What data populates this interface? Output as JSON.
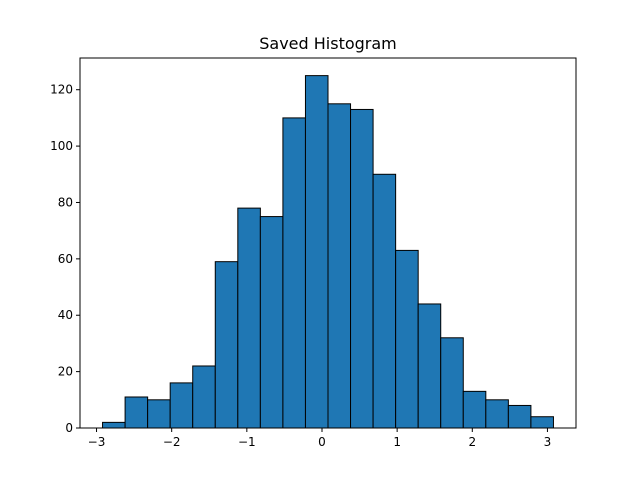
{
  "chart_data": {
    "type": "bar",
    "title": "Saved Histogram",
    "xlabel": "",
    "ylabel": "",
    "bins": [
      {
        "x0": -2.92,
        "x1": -2.62,
        "count": 2
      },
      {
        "x0": -2.62,
        "x1": -2.32,
        "count": 11
      },
      {
        "x0": -2.32,
        "x1": -2.02,
        "count": 10
      },
      {
        "x0": -2.02,
        "x1": -1.72,
        "count": 16
      },
      {
        "x0": -1.72,
        "x1": -1.42,
        "count": 22
      },
      {
        "x0": -1.42,
        "x1": -1.12,
        "count": 59
      },
      {
        "x0": -1.12,
        "x1": -0.82,
        "count": 78
      },
      {
        "x0": -0.82,
        "x1": -0.52,
        "count": 75
      },
      {
        "x0": -0.52,
        "x1": -0.22,
        "count": 110
      },
      {
        "x0": -0.22,
        "x1": 0.08,
        "count": 125
      },
      {
        "x0": 0.08,
        "x1": 0.38,
        "count": 115
      },
      {
        "x0": 0.38,
        "x1": 0.68,
        "count": 113
      },
      {
        "x0": 0.68,
        "x1": 0.98,
        "count": 90
      },
      {
        "x0": 0.98,
        "x1": 1.28,
        "count": 63
      },
      {
        "x0": 1.28,
        "x1": 1.58,
        "count": 44
      },
      {
        "x0": 1.58,
        "x1": 1.88,
        "count": 32
      },
      {
        "x0": 1.88,
        "x1": 2.18,
        "count": 13
      },
      {
        "x0": 2.18,
        "x1": 2.48,
        "count": 10
      },
      {
        "x0": 2.48,
        "x1": 2.78,
        "count": 8
      },
      {
        "x0": 2.78,
        "x1": 3.08,
        "count": 4
      }
    ],
    "xlim": [
      -3.22,
      3.38
    ],
    "ylim": [
      0,
      131.25
    ],
    "xticks": [
      -3,
      -2,
      -1,
      0,
      1,
      2,
      3
    ],
    "xtick_labels": [
      "−3",
      "−2",
      "−1",
      "0",
      "1",
      "2",
      "3"
    ],
    "yticks": [
      0,
      20,
      40,
      60,
      80,
      100,
      120
    ],
    "ytick_labels": [
      "0",
      "20",
      "40",
      "60",
      "80",
      "100",
      "120"
    ],
    "grid": false,
    "legend": "none",
    "colors": {
      "bar_fill": "#1f77b4",
      "bar_edge": "#000000",
      "axis": "#000000",
      "background": "#ffffff"
    }
  }
}
